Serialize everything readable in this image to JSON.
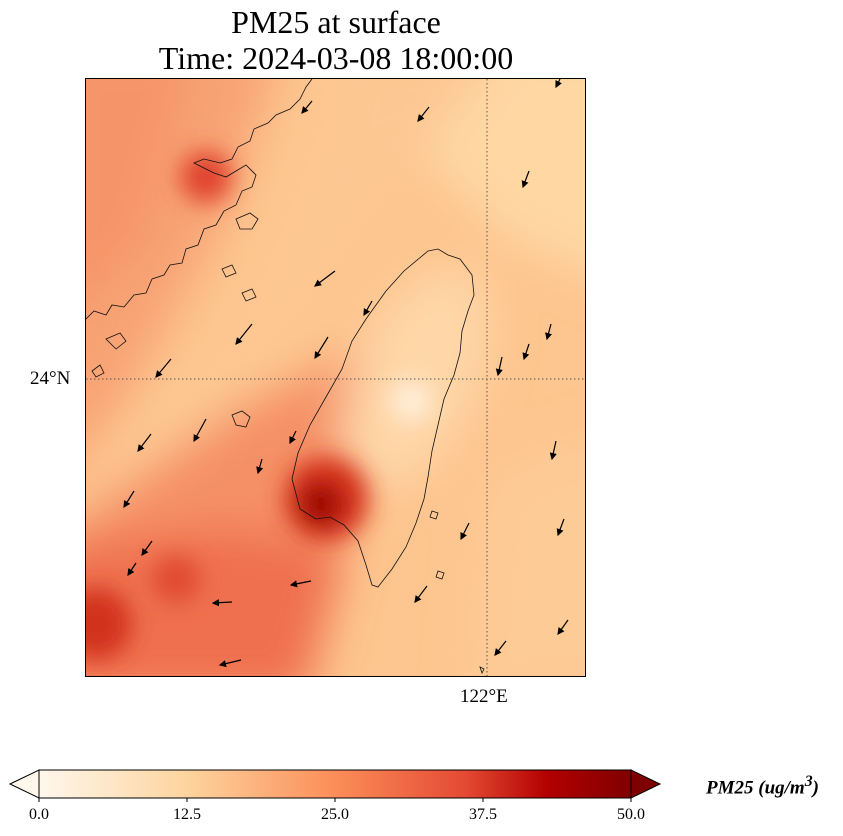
{
  "title": {
    "line1": "PM25 at surface",
    "line2": "Time: 2024-03-08 18:00:00"
  },
  "map": {
    "region": "Taiwan Strait / Taiwan",
    "projection_extent": {
      "lon_min": 119.3,
      "lon_max": 122.7,
      "lat_min": 21.9,
      "lat_max": 25.9
    },
    "gridlines": {
      "lat": 24,
      "lon": 122,
      "style": "dotted"
    },
    "lat_tick_label": "24°N",
    "lon_tick_label": "122°E",
    "hotspots": [
      {
        "name": "Fujian coast",
        "lon": 120.15,
        "lat": 25.35,
        "value": 38
      },
      {
        "name": "SW Taiwan (Tainan/Kaohsiung)",
        "lon": 120.85,
        "lat": 23.1,
        "value": 47
      },
      {
        "name": "SW corner plume",
        "lon": 119.4,
        "lat": 22.25,
        "value": 40
      }
    ],
    "wind_field": "southwestward arrows"
  },
  "colorbar": {
    "min": 0.0,
    "max": 50.0,
    "ticks": [
      "0.0",
      "12.5",
      "25.0",
      "37.5",
      "50.0"
    ],
    "extend": "both",
    "colormap": "OrRd",
    "colors": [
      "#fff7ec",
      "#fdd49e",
      "#fc8d59",
      "#d7301f",
      "#b30000",
      "#7f0000"
    ],
    "label_prefix": "PM25 (ug/m",
    "label_sup": "3",
    "label_suffix": ")"
  }
}
